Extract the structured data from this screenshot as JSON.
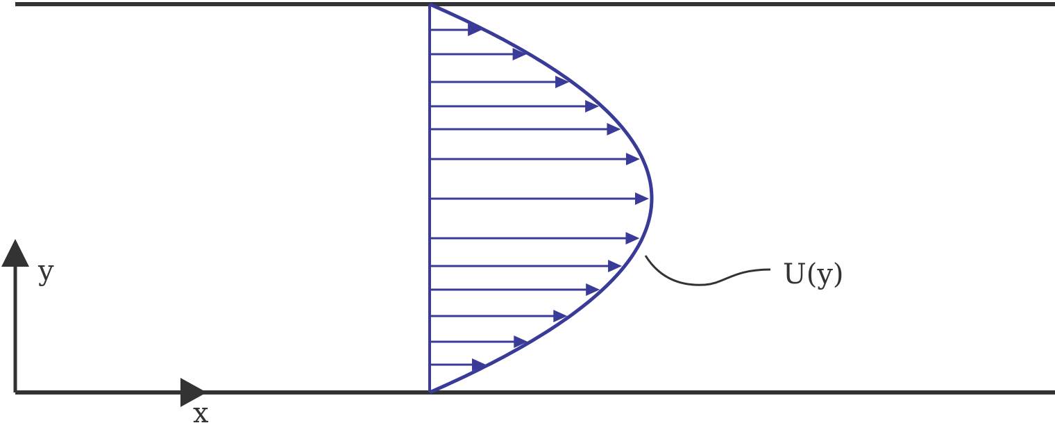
{
  "labels": {
    "y_axis": "y",
    "x_axis": "x",
    "profile": "U(y)"
  },
  "colors": {
    "wall": "#333333",
    "axis": "#333333",
    "profile": "#3a3b98",
    "text": "#333333"
  },
  "velocity_profile": {
    "shape": "parabolic",
    "arrow_count": 13
  }
}
